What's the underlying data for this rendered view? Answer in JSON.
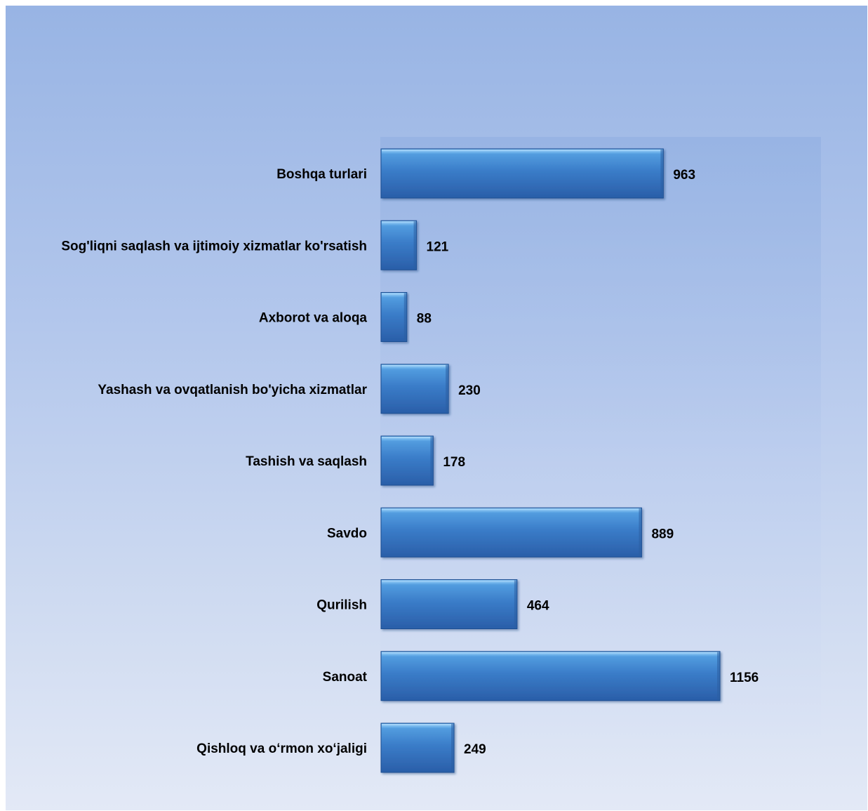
{
  "chart_data": {
    "type": "bar",
    "orientation": "horizontal",
    "title": "",
    "xlabel": "",
    "ylabel": "",
    "categories": [
      "Boshqa turlari",
      "Sog'liqni saqlash va ijtimoiy xizmatlar ko'rsatish",
      "Axborot va aloqa",
      "Yashash va ovqatlanish bo'yicha xizmatlar",
      "Tashish va saqlash",
      "Savdo",
      "Qurilish",
      "Sanoat",
      "Qishloq va o‘rmon xo‘jaligi"
    ],
    "values": [
      963,
      121,
      88,
      230,
      178,
      889,
      464,
      1156,
      249
    ],
    "data_labels": true,
    "grid": false,
    "legend": "none",
    "xlim": [
      0,
      1500
    ],
    "colors": {
      "bar_top": "#5aa6e6",
      "bar_mid": "#3a7cc8",
      "bar_bottom": "#2a5ea8",
      "bar_edge": "#1f4f92"
    }
  }
}
